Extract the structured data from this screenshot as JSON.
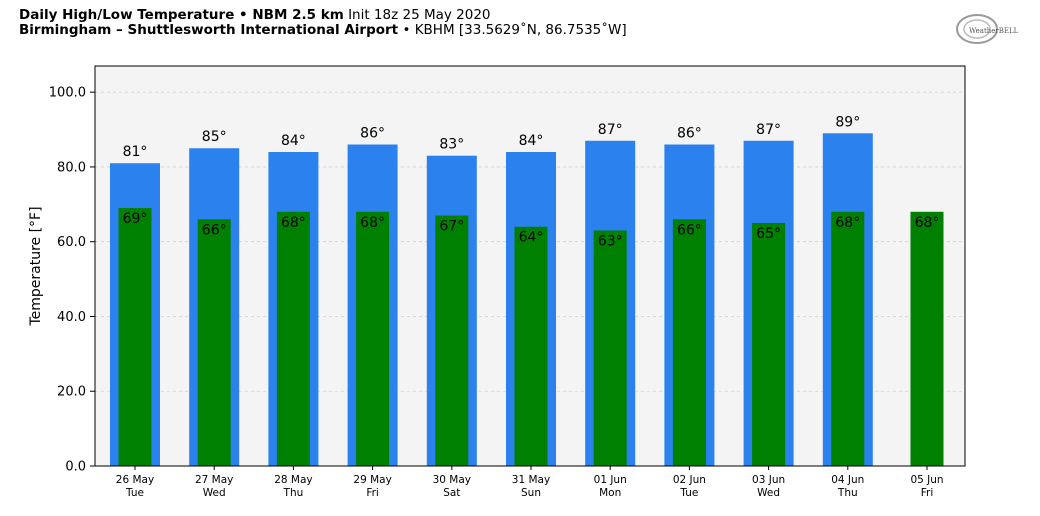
{
  "header": {
    "title_bold": "Daily High/Low Temperature • NBM 2.5 km",
    "title_init": "Init 18z 25 May 2020",
    "location_bold": "Birmingham – Shuttlesworth International Airport",
    "location_rest": "• KBHM [33.5629˚N, 86.7535˚W]"
  },
  "logo": {
    "text": "WeatherBELL"
  },
  "colors": {
    "high": "#2b82ee",
    "low": "#008000",
    "plot_bg": "#f4f4f4",
    "grid": "#d0d0d0"
  },
  "chart_data": {
    "type": "bar",
    "ylabel": "Temperature [°F]",
    "ylim": [
      0,
      107
    ],
    "yticks": [
      "0.0",
      "20.0",
      "40.0",
      "60.0",
      "80.0",
      "100.0"
    ],
    "grid": true,
    "categories": [
      {
        "date": "26 May",
        "day": "Tue"
      },
      {
        "date": "27 May",
        "day": "Wed"
      },
      {
        "date": "28 May",
        "day": "Thu"
      },
      {
        "date": "29 May",
        "day": "Fri"
      },
      {
        "date": "30 May",
        "day": "Sat"
      },
      {
        "date": "31 May",
        "day": "Sun"
      },
      {
        "date": "01 Jun",
        "day": "Mon"
      },
      {
        "date": "02 Jun",
        "day": "Tue"
      },
      {
        "date": "03 Jun",
        "day": "Wed"
      },
      {
        "date": "04 Jun",
        "day": "Thu"
      },
      {
        "date": "05 Jun",
        "day": "Fri"
      }
    ],
    "series": [
      {
        "key": "high",
        "values": [
          81,
          85,
          84,
          86,
          83,
          84,
          87,
          86,
          87,
          89,
          null
        ],
        "labels": [
          "81°",
          "85°",
          "84°",
          "86°",
          "83°",
          "84°",
          "87°",
          "86°",
          "87°",
          "89°",
          ""
        ]
      },
      {
        "key": "low",
        "values": [
          69,
          66,
          68,
          68,
          67,
          64,
          63,
          66,
          65,
          68,
          68
        ],
        "labels": [
          "69°",
          "66°",
          "68°",
          "68°",
          "67°",
          "64°",
          "63°",
          "66°",
          "65°",
          "68°",
          "68°"
        ]
      }
    ]
  }
}
